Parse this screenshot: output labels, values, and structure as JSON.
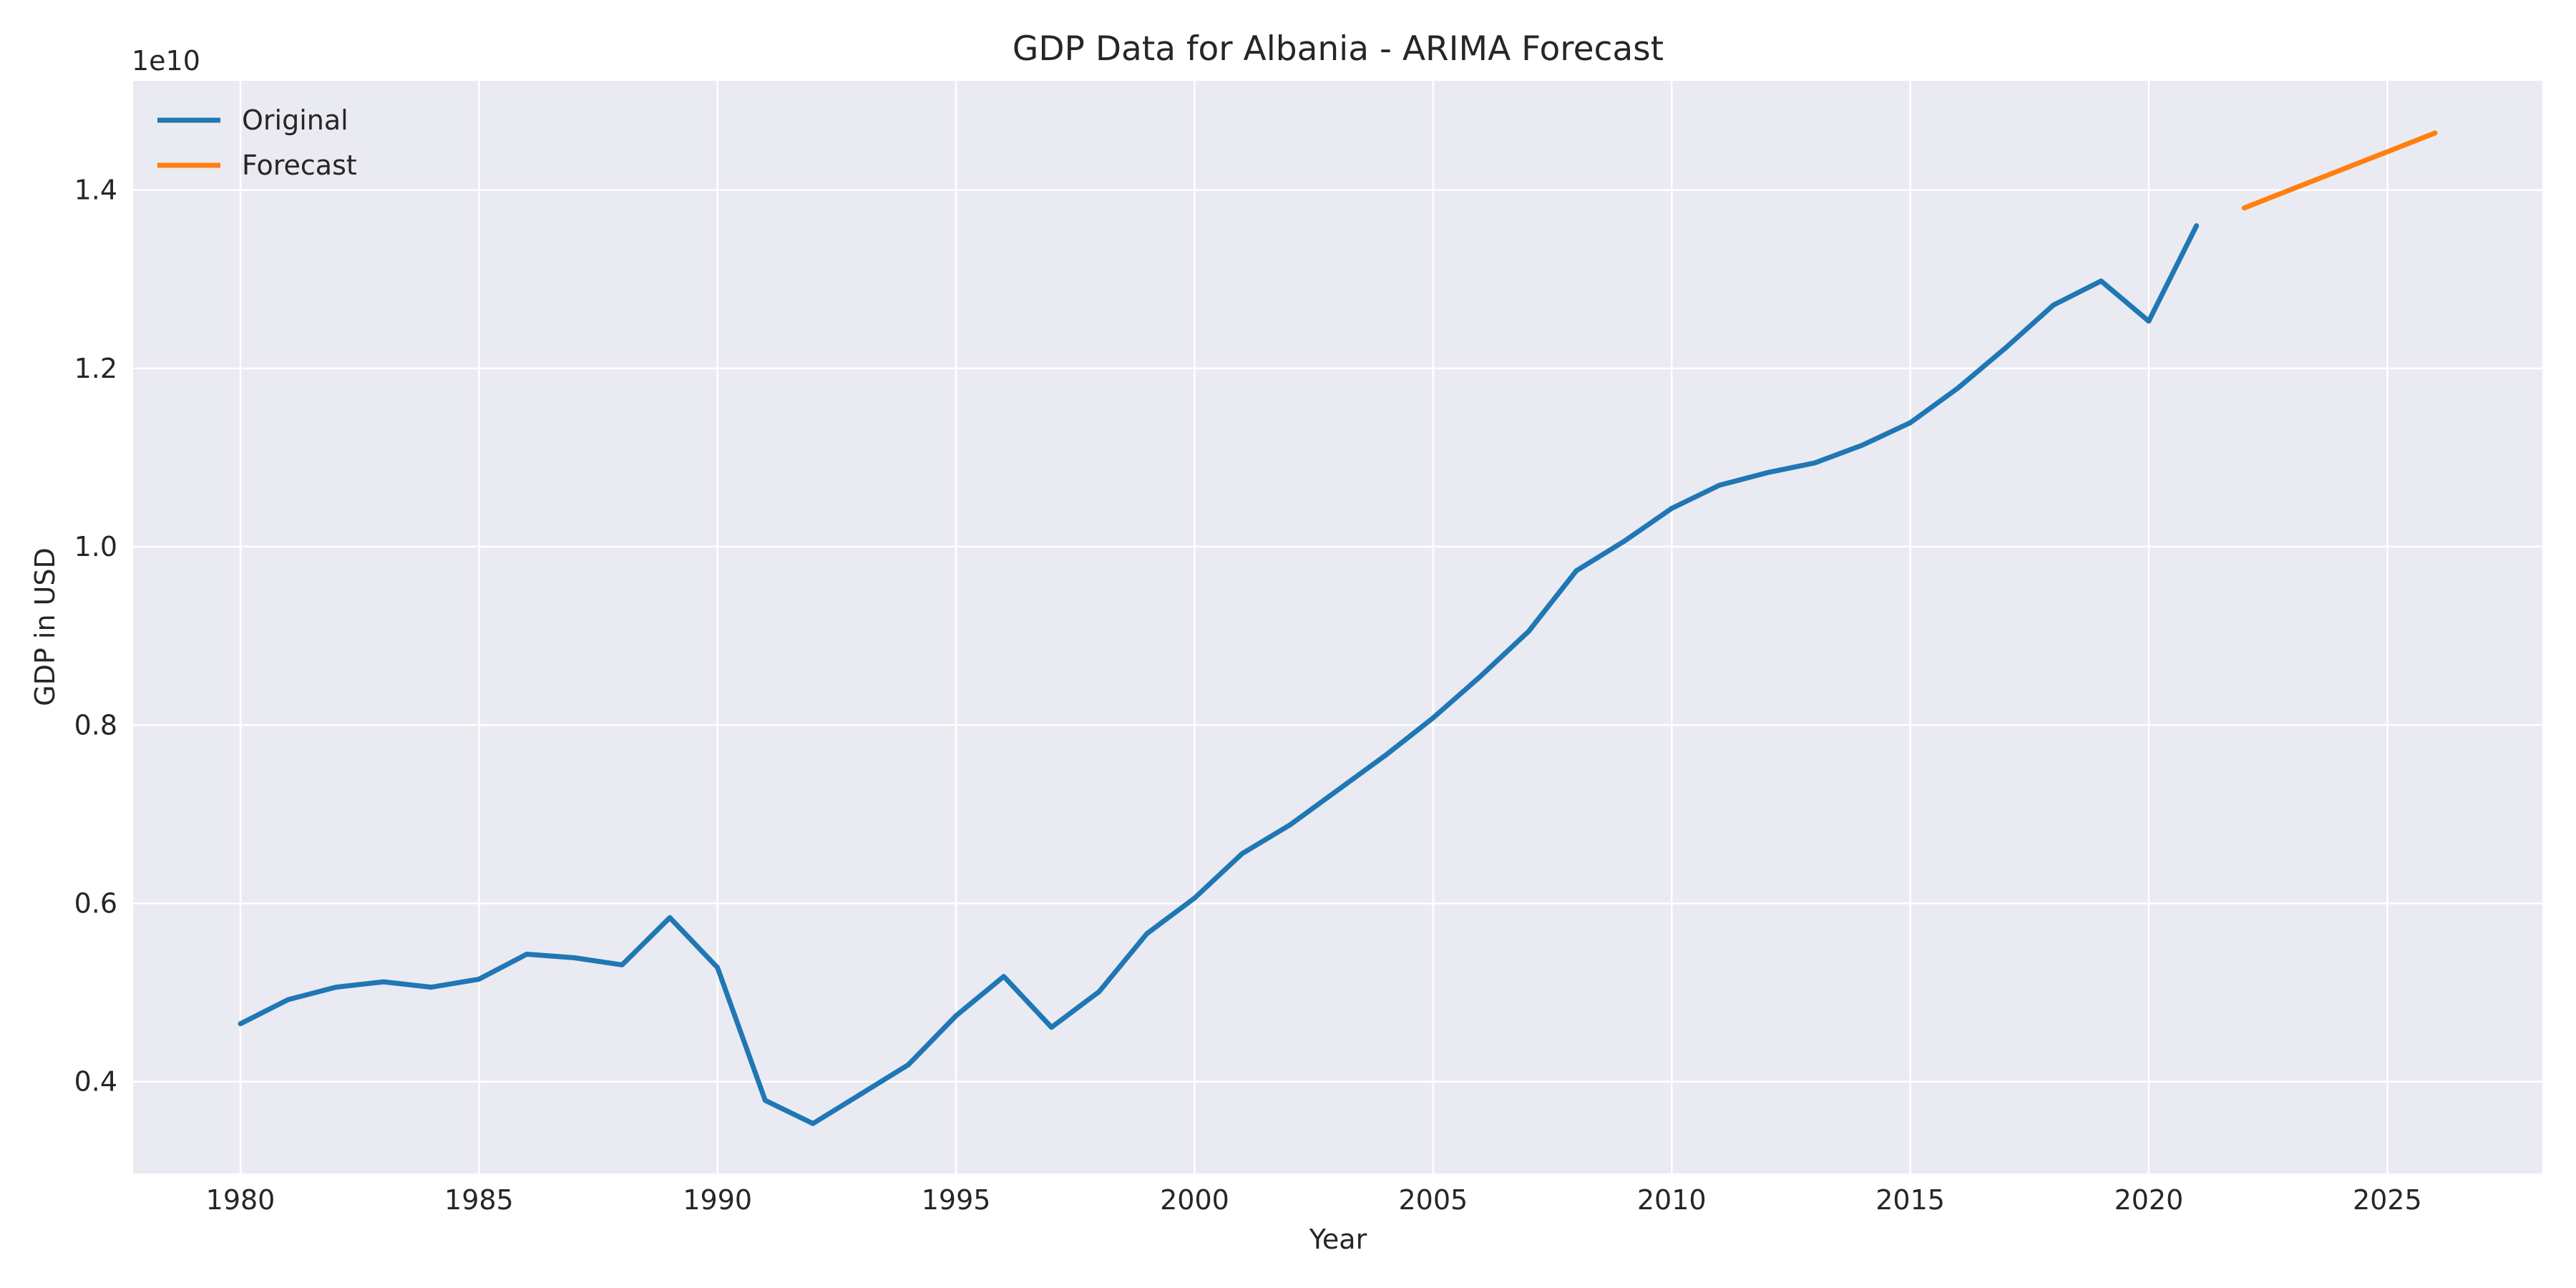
{
  "chart_data": {
    "type": "line",
    "title": "GDP Data for Albania - ARIMA Forecast",
    "xlabel": "Year",
    "ylabel": "GDP in USD",
    "y_offset_label": "1e10",
    "y_scale": 10000000000,
    "xlim": [
      1977.75,
      2028.25
    ],
    "ylim": [
      2970000000.0,
      15225000000.0
    ],
    "x_ticks": [
      1980,
      1985,
      1990,
      1995,
      2000,
      2005,
      2010,
      2015,
      2020,
      2025
    ],
    "x_tick_labels": [
      "1980",
      "1985",
      "1990",
      "1995",
      "2000",
      "2005",
      "2010",
      "2015",
      "2020",
      "2025"
    ],
    "y_ticks": [
      4000000000,
      6000000000,
      8000000000,
      10000000000,
      12000000000,
      14000000000
    ],
    "y_tick_labels": [
      "0.4",
      "0.6",
      "0.8",
      "1.0",
      "1.2",
      "1.4"
    ],
    "grid": true,
    "legend_position": "top-left",
    "background": "#eaeaf2",
    "series": [
      {
        "name": "Original",
        "color": "#1f77b4",
        "x": [
          1980,
          1981,
          1982,
          1983,
          1984,
          1985,
          1986,
          1987,
          1988,
          1989,
          1990,
          1991,
          1992,
          1993,
          1994,
          1995,
          1996,
          1997,
          1998,
          1999,
          2000,
          2001,
          2002,
          2003,
          2004,
          2005,
          2006,
          2007,
          2008,
          2009,
          2010,
          2011,
          2012,
          2013,
          2014,
          2015,
          2016,
          2017,
          2018,
          2019,
          2020,
          2021
        ],
        "values": [
          4650000000,
          4920000000,
          5060000000,
          5120000000,
          5060000000,
          5150000000,
          5430000000,
          5390000000,
          5310000000,
          5840000000,
          5280000000,
          3790000000,
          3530000000,
          3860000000,
          4190000000,
          4740000000,
          5180000000,
          4610000000,
          5010000000,
          5660000000,
          6060000000,
          6560000000,
          6880000000,
          7270000000,
          7660000000,
          8080000000,
          8550000000,
          9050000000,
          9730000000,
          10060000000,
          10430000000,
          10690000000,
          10830000000,
          10940000000,
          11140000000,
          11390000000,
          11780000000,
          12230000000,
          12710000000,
          12980000000,
          12530000000,
          13600000000
        ]
      },
      {
        "name": "Forecast",
        "color": "#ff7f0e",
        "x": [
          2022,
          2023,
          2024,
          2025,
          2026
        ],
        "values": [
          13800000000,
          14010000000,
          14220000000,
          14430000000,
          14640000000
        ]
      }
    ]
  }
}
